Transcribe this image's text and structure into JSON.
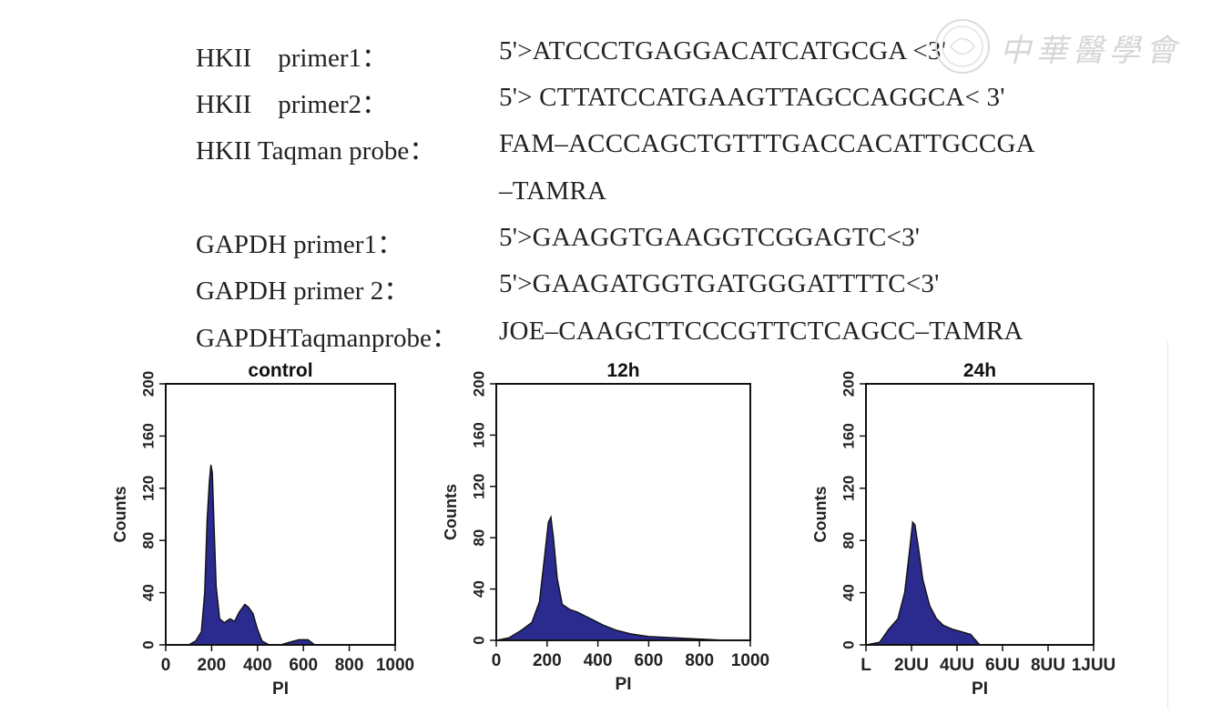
{
  "primer_table": {
    "rows": [
      {
        "label": "HKII    primer1：",
        "sequence": "5'>ATCCCTGAGGACATCATGCGA <3'"
      },
      {
        "label": "HKII    primer2：",
        "sequence": "5'> CTTATCCATGAAGTTAGCCAGGCA< 3'"
      },
      {
        "label": "HKII Taqman probe：",
        "sequence": "FAM–ACCCAGCTGTTTGACCACATTGCCGA"
      },
      {
        "label": "",
        "sequence": "–TAMRA"
      },
      {
        "label": "GAPDH primer1：",
        "sequence": "5'>GAAGGTGAAGGTCGGAGTC<3'"
      },
      {
        "label": "GAPDH primer 2：",
        "sequence": "5'>GAAGATGGTGATGGGATTTTC<3'"
      },
      {
        "label": "GAPDHTaqmanprobe：",
        "sequence": "JOE–CAAGCTTCCCGTTCTCAGCC–TAMRA"
      }
    ]
  },
  "watermark": {
    "text": "中華醫學會"
  },
  "chart_data": [
    {
      "type": "area",
      "title": "control",
      "xlabel": "PI",
      "ylabel": "Counts",
      "xlim": [
        0,
        1000
      ],
      "ylim": [
        0,
        200
      ],
      "xticks": [
        0,
        200,
        400,
        600,
        800,
        1000
      ],
      "yticks": [
        0,
        40,
        80,
        120,
        160,
        200
      ],
      "xtick_labels": [
        "0",
        "200",
        "400",
        "600",
        "800",
        "1000"
      ],
      "ytick_labels": [
        "0",
        "40",
        "80",
        "120",
        "160",
        "200"
      ],
      "fill_color": "#2a2a8f",
      "x": [
        0,
        100,
        130,
        155,
        170,
        180,
        190,
        197,
        203,
        210,
        220,
        235,
        255,
        280,
        300,
        320,
        345,
        360,
        380,
        400,
        420,
        450,
        500,
        540,
        580,
        620,
        650,
        700,
        1000
      ],
      "y": [
        0,
        0,
        3,
        10,
        40,
        95,
        125,
        138,
        132,
        95,
        45,
        20,
        17,
        20,
        18,
        25,
        31,
        29,
        24,
        12,
        3,
        0,
        0,
        2,
        4,
        4,
        0,
        0,
        0
      ]
    },
    {
      "type": "area",
      "title": "12h",
      "xlabel": "PI",
      "ylabel": "Counts",
      "xlim": [
        0,
        1000
      ],
      "ylim": [
        0,
        200
      ],
      "xticks": [
        0,
        200,
        400,
        600,
        800,
        1000
      ],
      "yticks": [
        0,
        40,
        80,
        120,
        160,
        200
      ],
      "xtick_labels": [
        "0",
        "200",
        "400",
        "600",
        "800",
        "1000"
      ],
      "ytick_labels": [
        "0",
        "40",
        "80",
        "120",
        "160",
        "200"
      ],
      "fill_color": "#2a2a8f",
      "x": [
        0,
        50,
        100,
        140,
        170,
        190,
        205,
        215,
        225,
        240,
        260,
        290,
        320,
        350,
        380,
        420,
        470,
        530,
        600,
        700,
        800,
        900,
        1000
      ],
      "y": [
        0,
        2,
        8,
        14,
        30,
        65,
        92,
        96,
        80,
        48,
        28,
        24,
        22,
        19,
        16,
        12,
        8,
        5,
        3,
        2,
        1,
        0,
        0
      ]
    },
    {
      "type": "area",
      "title": "24h",
      "xlabel": "PI",
      "ylabel": "Counts",
      "xlim": [
        0,
        1000
      ],
      "ylim": [
        0,
        200
      ],
      "xticks": [
        0,
        200,
        400,
        600,
        800,
        1000
      ],
      "yticks": [
        0,
        40,
        80,
        120,
        160,
        200
      ],
      "xtick_labels": [
        "L",
        "2UU",
        "4UU",
        "6UU",
        "8UU",
        "1JUU"
      ],
      "ytick_labels": [
        "0",
        "40",
        "80",
        "120",
        "160",
        "200"
      ],
      "fill_color": "#2a2a8f",
      "x": [
        0,
        60,
        100,
        140,
        170,
        190,
        205,
        215,
        230,
        250,
        280,
        310,
        340,
        380,
        420,
        460,
        480,
        500,
        1000
      ],
      "y": [
        0,
        2,
        12,
        20,
        40,
        70,
        94,
        92,
        75,
        50,
        30,
        20,
        15,
        12,
        10,
        8,
        4,
        0,
        0
      ]
    }
  ]
}
